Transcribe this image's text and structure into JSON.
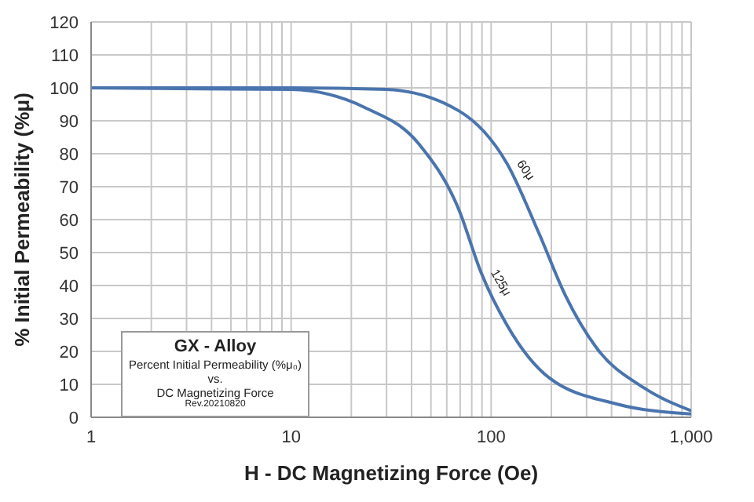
{
  "chart_data": {
    "type": "line",
    "xlabel": "H - DC Magnetizing Force (Oe)",
    "ylabel": "% Initial Permeability (%μ)",
    "log": "x",
    "grid": true,
    "marker": "none",
    "line_style": "solid",
    "xlim": [
      1,
      1000
    ],
    "xticks": [
      1,
      {
        "value": 2,
        "label": null
      },
      {
        "value": 3,
        "label": null
      },
      {
        "value": 4,
        "label": null
      },
      {
        "value": 5,
        "label": null
      },
      {
        "value": 6,
        "label": null
      },
      {
        "value": 7,
        "label": null
      },
      {
        "value": 8,
        "label": null
      },
      {
        "value": 9,
        "label": null
      },
      10,
      {
        "value": 20,
        "label": null
      },
      {
        "value": 30,
        "label": null
      },
      {
        "value": 40,
        "label": null
      },
      {
        "value": 50,
        "label": null
      },
      {
        "value": 60,
        "label": null
      },
      {
        "value": 70,
        "label": null
      },
      {
        "value": 80,
        "label": null
      },
      {
        "value": 90,
        "label": null
      },
      100,
      {
        "value": 200,
        "label": null
      },
      {
        "value": 300,
        "label": null
      },
      {
        "value": 400,
        "label": null
      },
      {
        "value": 500,
        "label": null
      },
      {
        "value": 600,
        "label": null
      },
      {
        "value": 700,
        "label": null
      },
      {
        "value": 800,
        "label": null
      },
      {
        "value": 900,
        "label": null
      },
      {
        "value": 1000,
        "label": "1,000"
      }
    ],
    "ylim": [
      0,
      120
    ],
    "yticks": [
      0,
      10,
      20,
      30,
      40,
      50,
      60,
      70,
      80,
      90,
      100,
      110,
      120
    ],
    "series": [
      {
        "name": "60μ",
        "color": "#4a74ad",
        "x": [
          1,
          10,
          30,
          69,
          120,
          173,
          235,
          337,
          578,
          1000
        ],
        "values": [
          100,
          100,
          99.5,
          93,
          77,
          56,
          37,
          21,
          9,
          2
        ]
      },
      {
        "name": "125μ",
        "color": "#4a74ad",
        "x": [
          1,
          10,
          23.4,
          43.5,
          69,
          89,
          120,
          195,
          427,
          1000
        ],
        "values": [
          100,
          99.5,
          94,
          83,
          63,
          44,
          28,
          12,
          4,
          1
        ]
      }
    ],
    "annotations": [
      "GX - Alloy",
      "Percent Initial Permeability (%μ₀)",
      "vs.",
      "DC Magnetizing Force",
      "Rev.20210820"
    ]
  }
}
